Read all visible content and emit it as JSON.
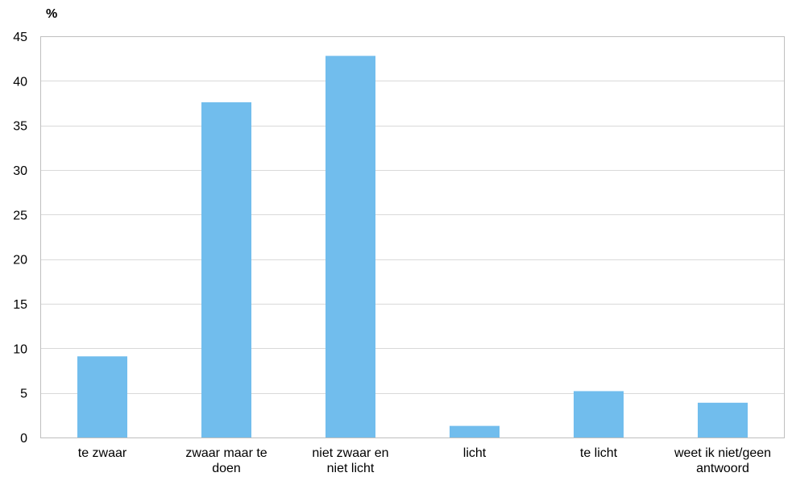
{
  "chart_data": {
    "type": "bar",
    "ylabel": "%",
    "ylim": [
      0,
      45
    ],
    "yticks": [
      0,
      5,
      10,
      15,
      20,
      25,
      30,
      35,
      40,
      45
    ],
    "grid": true,
    "categories": [
      [
        "te zwaar"
      ],
      [
        "zwaar maar te",
        "doen"
      ],
      [
        "niet zwaar en",
        "niet licht"
      ],
      [
        "licht"
      ],
      [
        "te licht"
      ],
      [
        "weet ik niet/geen",
        "antwoord"
      ]
    ],
    "series": [
      {
        "values": [
          9.1,
          37.6,
          42.8,
          1.3,
          5.2,
          3.9
        ]
      }
    ],
    "colors": {
      "bar": "#71BDED",
      "grid": "#D9D9D9",
      "axis": "#BFBFBF"
    }
  }
}
